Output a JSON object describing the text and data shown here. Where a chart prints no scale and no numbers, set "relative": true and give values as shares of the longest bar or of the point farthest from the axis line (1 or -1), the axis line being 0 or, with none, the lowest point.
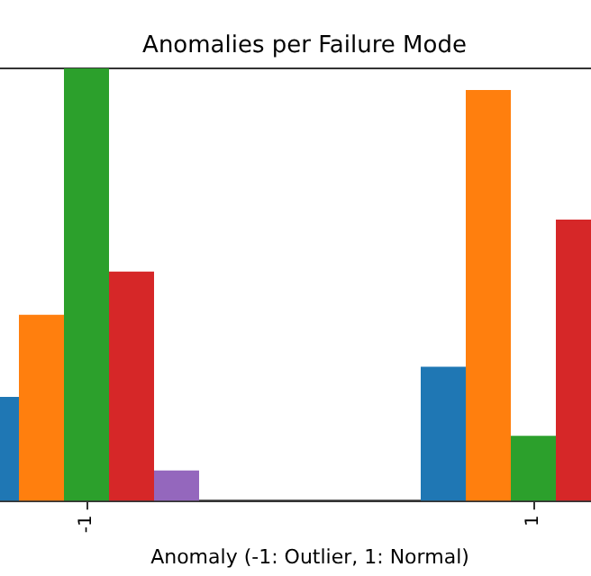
{
  "chart_data": {
    "type": "bar",
    "title": "Anomalies per Failure Mode",
    "xlabel": "Anomaly (-1: Outlier, 1: Normal)",
    "categories": [
      "-1",
      "1"
    ],
    "relative": true,
    "grid": false,
    "series": [
      {
        "color": "#1f77b4",
        "values": [
          0.24,
          0.31
        ]
      },
      {
        "color": "#ff7f0e",
        "values": [
          0.43,
          0.95
        ]
      },
      {
        "color": "#2ca02c",
        "values": [
          1,
          0.15
        ]
      },
      {
        "color": "#d62728",
        "values": [
          0.53,
          0.65
        ]
      },
      {
        "color": "#9467bd",
        "values": [
          0.07,
          null
        ]
      }
    ]
  }
}
